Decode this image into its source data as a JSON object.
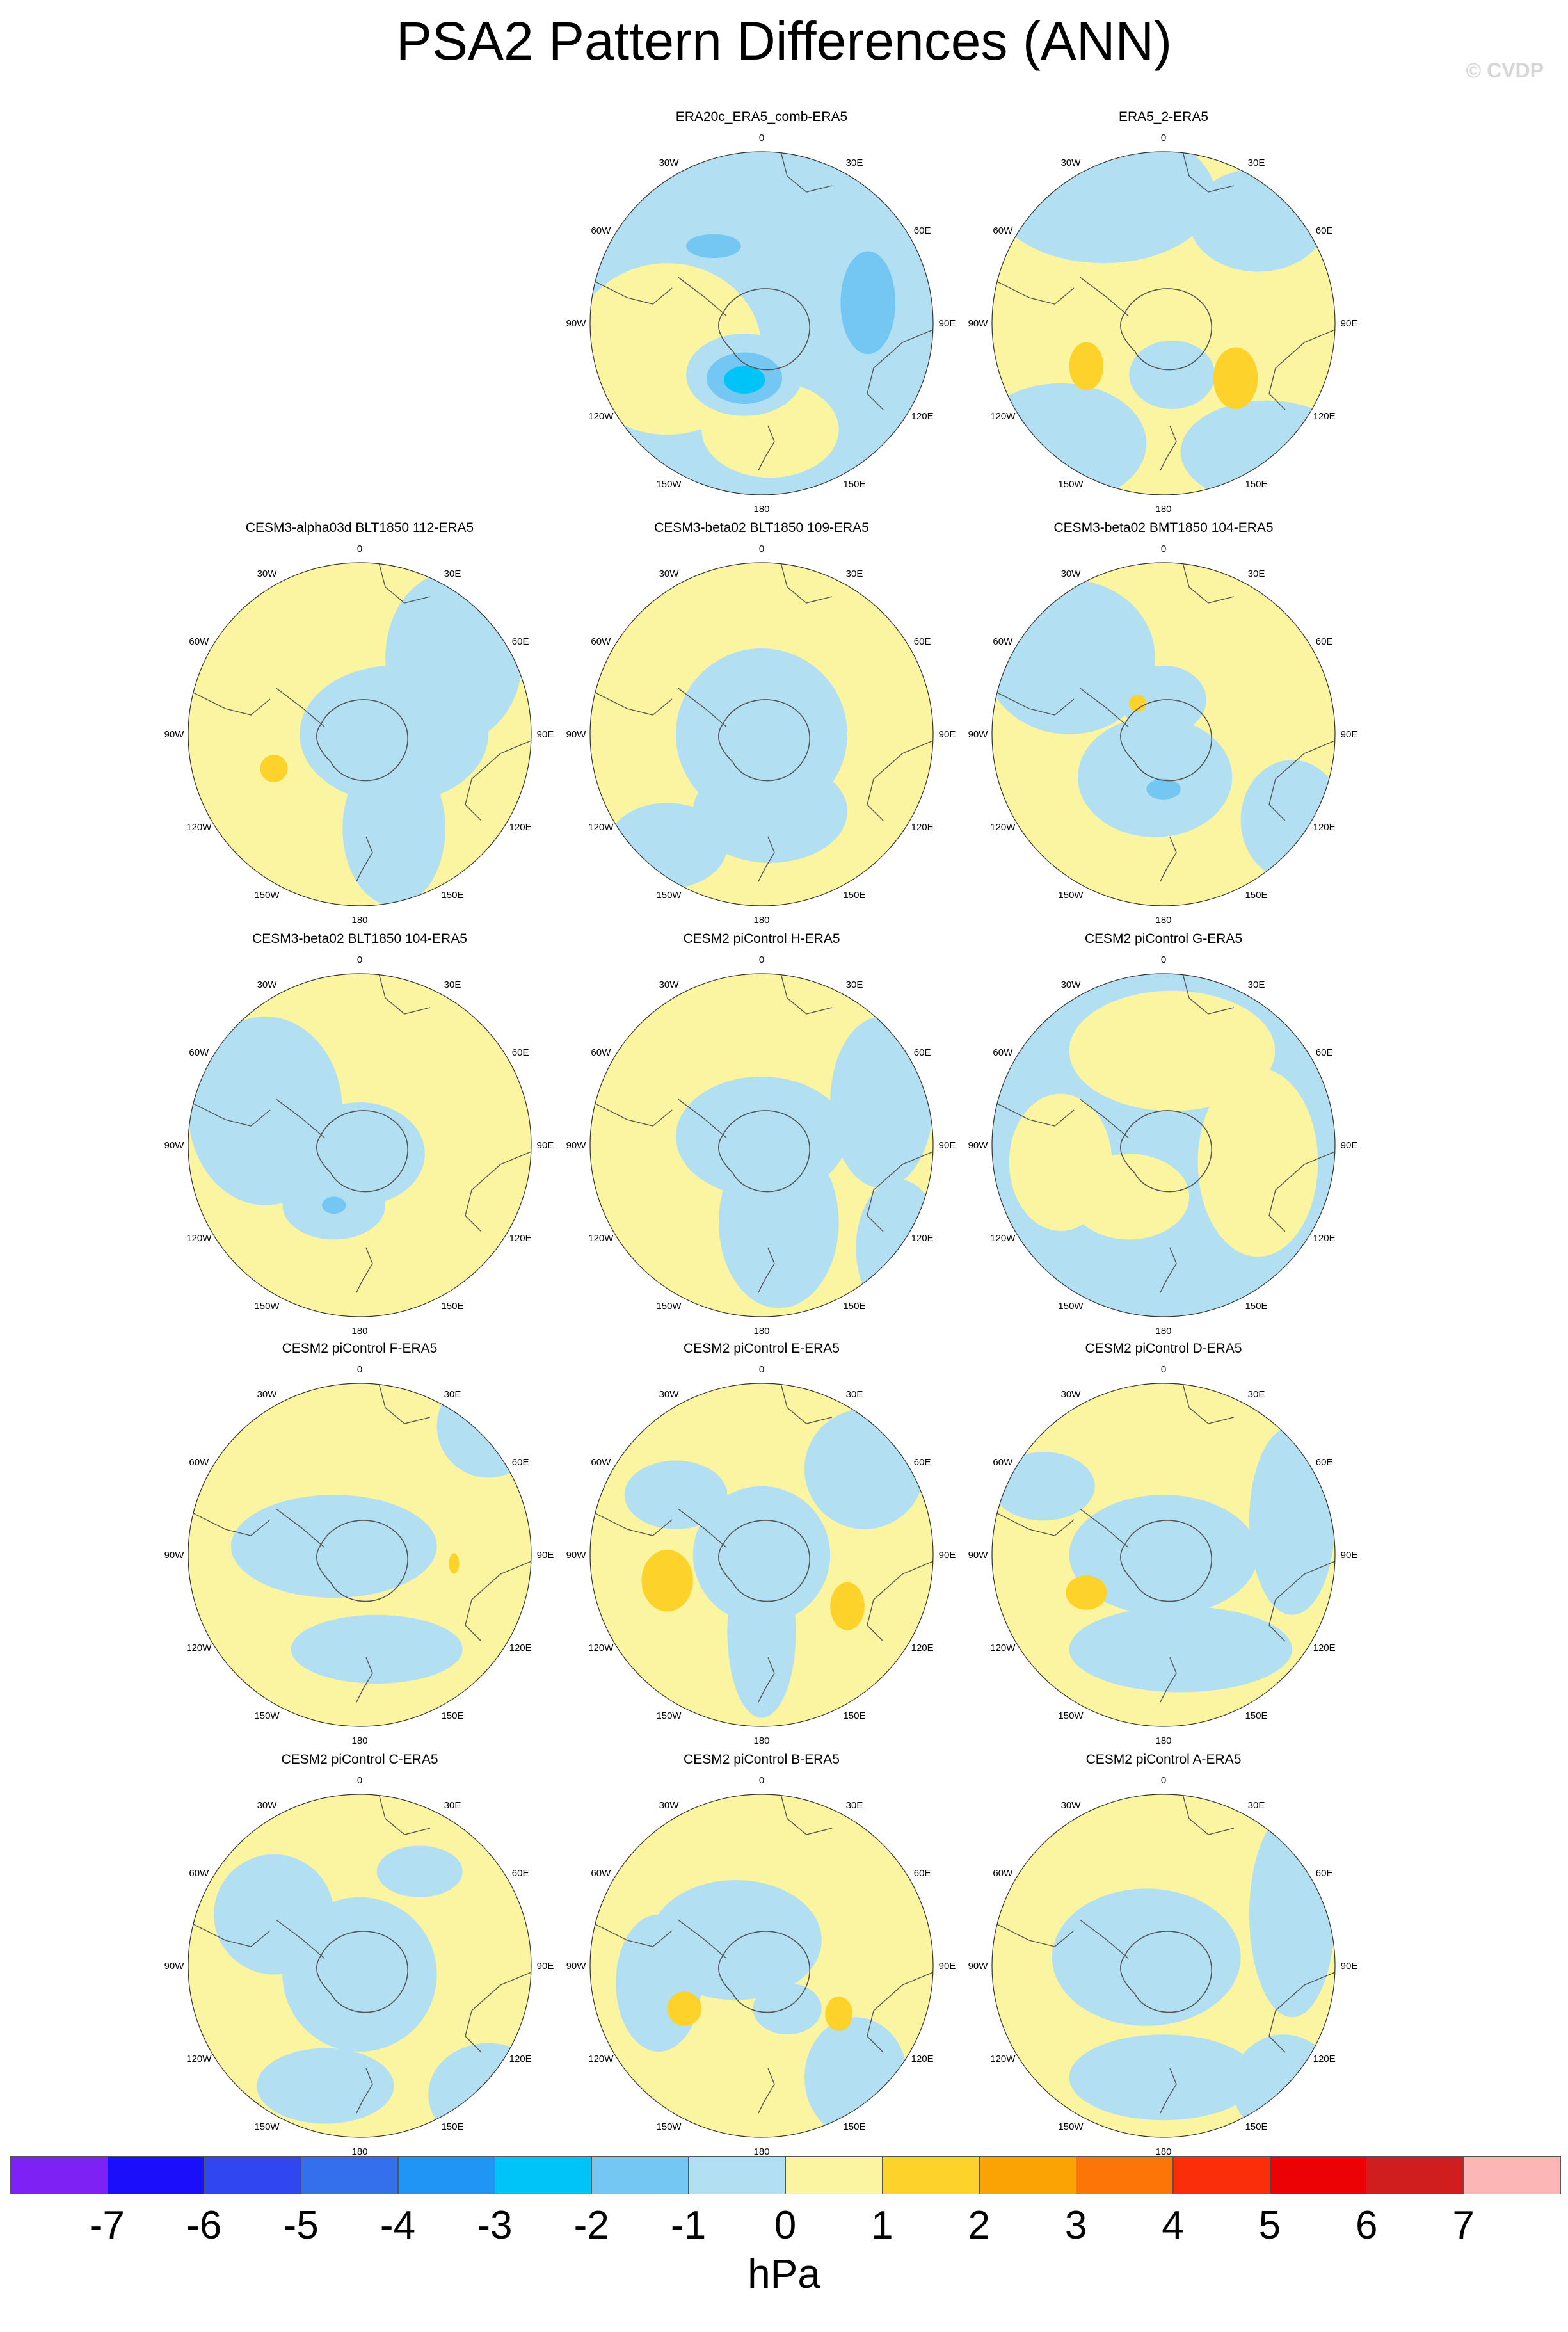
{
  "title": "PSA2 Pattern Differences (ANN)",
  "credit": "© CVDP",
  "colors": {
    "fill_neg1": "#b3dff2",
    "fill_0": "#fbf5a1",
    "fill_1": "#fdd32b",
    "fill_neg2": "#74c7f2",
    "fill_neg3": "#2aa8f0",
    "fill_neg4": "#00c3f7",
    "coast": "#555555"
  },
  "lon_labels": [
    "0",
    "30E",
    "60E",
    "90E",
    "120E",
    "150E",
    "180",
    "150W",
    "120W",
    "90W",
    "60W",
    "30W"
  ],
  "panels": [
    {
      "title": "ERA20c_ERA5_comb-ERA5",
      "base": "blue",
      "blobs": [
        [
          "fill_0",
          -0.55,
          0.15,
          0.55,
          0.5
        ],
        [
          "fill_0",
          0.05,
          0.62,
          0.4,
          0.28
        ],
        [
          "fill_neg2",
          0.62,
          -0.12,
          0.16,
          0.3
        ],
        [
          "fill_neg1",
          -0.1,
          0.3,
          0.34,
          0.24
        ],
        [
          "fill_neg2",
          -0.1,
          0.32,
          0.22,
          0.15
        ],
        [
          "fill_neg4",
          -0.1,
          0.33,
          0.12,
          0.08
        ],
        [
          "fill_neg2",
          -0.28,
          -0.45,
          0.16,
          0.07
        ]
      ]
    },
    {
      "title": "ERA5_2-ERA5",
      "base": "yellow",
      "blobs": [
        [
          "fill_neg1",
          -0.35,
          -0.75,
          0.65,
          0.4
        ],
        [
          "fill_neg1",
          0.55,
          -0.6,
          0.4,
          0.3
        ],
        [
          "fill_neg1",
          -0.6,
          0.7,
          0.5,
          0.35
        ],
        [
          "fill_neg1",
          0.6,
          0.75,
          0.5,
          0.3
        ],
        [
          "fill_neg1",
          0.05,
          0.3,
          0.25,
          0.2
        ],
        [
          "fill_1",
          -0.45,
          0.25,
          0.1,
          0.14
        ],
        [
          "fill_1",
          0.42,
          0.32,
          0.13,
          0.18
        ]
      ]
    },
    {
      "title": "CESM3-alpha03d BLT1850 112-ERA5",
      "base": "yellow",
      "blobs": [
        [
          "fill_neg1",
          0.2,
          0.0,
          0.55,
          0.4
        ],
        [
          "fill_neg1",
          0.55,
          -0.45,
          0.4,
          0.5
        ],
        [
          "fill_neg1",
          0.2,
          0.55,
          0.3,
          0.45
        ],
        [
          "fill_1",
          -0.5,
          0.2,
          0.08,
          0.08
        ]
      ]
    },
    {
      "title": "CESM3-beta02 BLT1850 109-ERA5",
      "base": "yellow",
      "blobs": [
        [
          "fill_neg1",
          0.0,
          0.0,
          0.5,
          0.5
        ],
        [
          "fill_neg1",
          0.05,
          0.45,
          0.45,
          0.3
        ],
        [
          "fill_neg1",
          -0.55,
          0.65,
          0.35,
          0.25
        ]
      ]
    },
    {
      "title": "CESM3-beta02 BMT1850 104-ERA5",
      "base": "yellow",
      "blobs": [
        [
          "fill_neg1",
          -0.55,
          -0.45,
          0.5,
          0.45
        ],
        [
          "fill_neg1",
          -0.05,
          0.25,
          0.45,
          0.35
        ],
        [
          "fill_neg1",
          0.75,
          0.5,
          0.3,
          0.35
        ],
        [
          "fill_neg1",
          0.0,
          -0.2,
          0.25,
          0.2
        ],
        [
          "fill_neg2",
          0.0,
          0.32,
          0.1,
          0.06
        ],
        [
          "fill_1",
          -0.15,
          -0.18,
          0.05,
          0.05
        ]
      ]
    },
    {
      "title": "CESM3-beta02 BLT1850 104-ERA5",
      "base": "yellow",
      "blobs": [
        [
          "fill_neg1",
          -0.55,
          -0.2,
          0.45,
          0.55
        ],
        [
          "fill_neg1",
          0.0,
          0.05,
          0.38,
          0.3
        ],
        [
          "fill_neg1",
          -0.15,
          0.35,
          0.3,
          0.2
        ],
        [
          "fill_neg2",
          -0.15,
          0.35,
          0.07,
          0.05
        ]
      ]
    },
    {
      "title": "CESM2 piControl H-ERA5",
      "base": "yellow",
      "blobs": [
        [
          "fill_neg1",
          0.0,
          -0.05,
          0.5,
          0.35
        ],
        [
          "fill_neg1",
          0.1,
          0.45,
          0.35,
          0.5
        ],
        [
          "fill_neg1",
          0.7,
          -0.25,
          0.3,
          0.5
        ],
        [
          "fill_neg1",
          0.8,
          0.6,
          0.25,
          0.4
        ]
      ]
    },
    {
      "title": "CESM2 piControl G-ERA5",
      "base": "blue",
      "blobs": [
        [
          "fill_0",
          0.05,
          -0.55,
          0.6,
          0.35
        ],
        [
          "fill_0",
          0.55,
          0.1,
          0.35,
          0.55
        ],
        [
          "fill_0",
          -0.2,
          0.3,
          0.35,
          0.25
        ],
        [
          "fill_0",
          -0.6,
          0.1,
          0.3,
          0.4
        ]
      ]
    },
    {
      "title": "CESM2 piControl F-ERA5",
      "base": "yellow",
      "blobs": [
        [
          "fill_neg1",
          -0.15,
          -0.05,
          0.6,
          0.3
        ],
        [
          "fill_neg1",
          0.1,
          0.55,
          0.5,
          0.2
        ],
        [
          "fill_neg1",
          0.75,
          -0.75,
          0.3,
          0.3
        ],
        [
          "fill_1",
          0.55,
          0.05,
          0.03,
          0.06
        ]
      ]
    },
    {
      "title": "CESM2 piControl E-ERA5",
      "base": "yellow",
      "blobs": [
        [
          "fill_neg1",
          0.0,
          0.0,
          0.4,
          0.4
        ],
        [
          "fill_neg1",
          0.0,
          0.45,
          0.2,
          0.5
        ],
        [
          "fill_neg1",
          0.6,
          -0.5,
          0.35,
          0.35
        ],
        [
          "fill_neg1",
          -0.5,
          -0.35,
          0.3,
          0.2
        ],
        [
          "fill_1",
          -0.55,
          0.15,
          0.15,
          0.18
        ],
        [
          "fill_1",
          0.5,
          0.3,
          0.1,
          0.14
        ]
      ]
    },
    {
      "title": "CESM2 piControl D-ERA5",
      "base": "yellow",
      "blobs": [
        [
          "fill_neg1",
          0.0,
          0.0,
          0.55,
          0.35
        ],
        [
          "fill_neg1",
          0.1,
          0.55,
          0.65,
          0.25
        ],
        [
          "fill_neg1",
          0.75,
          -0.2,
          0.25,
          0.55
        ],
        [
          "fill_neg1",
          -0.7,
          -0.4,
          0.3,
          0.2
        ],
        [
          "fill_1",
          -0.45,
          0.22,
          0.12,
          0.1
        ]
      ]
    },
    {
      "title": "CESM2 piControl C-ERA5",
      "base": "yellow",
      "blobs": [
        [
          "fill_neg1",
          0.0,
          0.05,
          0.45,
          0.45
        ],
        [
          "fill_neg1",
          -0.5,
          -0.3,
          0.35,
          0.35
        ],
        [
          "fill_neg1",
          -0.2,
          0.7,
          0.4,
          0.22
        ],
        [
          "fill_neg1",
          0.75,
          0.75,
          0.35,
          0.3
        ],
        [
          "fill_neg1",
          0.35,
          -0.55,
          0.25,
          0.15
        ]
      ]
    },
    {
      "title": "CESM2 piControl B-ERA5",
      "base": "yellow",
      "blobs": [
        [
          "fill_neg1",
          -0.15,
          -0.15,
          0.5,
          0.35
        ],
        [
          "fill_neg1",
          -0.6,
          0.1,
          0.25,
          0.4
        ],
        [
          "fill_neg1",
          0.55,
          0.65,
          0.3,
          0.35
        ],
        [
          "fill_neg1",
          0.15,
          0.25,
          0.2,
          0.15
        ],
        [
          "fill_1",
          -0.45,
          0.25,
          0.1,
          0.1
        ],
        [
          "fill_1",
          0.45,
          0.28,
          0.08,
          0.1
        ]
      ]
    },
    {
      "title": "CESM2 piControl A-ERA5",
      "base": "yellow",
      "blobs": [
        [
          "fill_neg1",
          -0.1,
          -0.05,
          0.55,
          0.4
        ],
        [
          "fill_neg1",
          0.75,
          -0.3,
          0.25,
          0.6
        ],
        [
          "fill_neg1",
          0.0,
          0.65,
          0.55,
          0.25
        ],
        [
          "fill_neg1",
          0.7,
          0.7,
          0.3,
          0.3
        ]
      ]
    }
  ],
  "colorbar": {
    "colors": [
      "#7d21f5",
      "#1a0ffa",
      "#2f46f0",
      "#3270ec",
      "#1e96f5",
      "#00c3f7",
      "#74c7f2",
      "#b3dff2",
      "#fbf5a1",
      "#fdd32b",
      "#fba204",
      "#fb7606",
      "#fa2f09",
      "#ec0205",
      "#d01e1e",
      "#fdb6b6"
    ],
    "labels": [
      "-7",
      "-6",
      "-5",
      "-4",
      "-3",
      "-2",
      "-1",
      "0",
      "1",
      "2",
      "3",
      "4",
      "5",
      "6",
      "7"
    ],
    "units": "hPa"
  }
}
